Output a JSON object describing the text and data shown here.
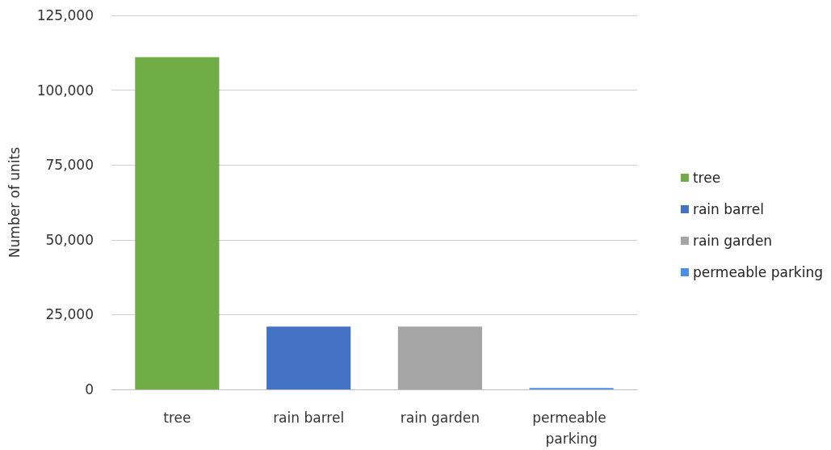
{
  "chart_data": {
    "type": "bar",
    "ylabel": "Number of units",
    "categories": [
      "tree",
      "rain barrel",
      "rain garden",
      "permeable parking"
    ],
    "series": [
      {
        "name": "tree",
        "color": "#70ad47",
        "values": [
          111000,
          null,
          null,
          null
        ]
      },
      {
        "name": "rain barrel",
        "color": "#4472c4",
        "values": [
          null,
          21000,
          null,
          null
        ]
      },
      {
        "name": "rain garden",
        "color": "#a5a5a5",
        "values": [
          null,
          null,
          21000,
          null
        ]
      },
      {
        "name": "permeable parking",
        "color": "#4a8fe7",
        "values": [
          null,
          null,
          null,
          500
        ]
      }
    ],
    "stacked": true,
    "ylim": [
      0,
      125000
    ],
    "yticks": [
      0,
      {
        "value": 25000,
        "label": "25,000"
      },
      {
        "value": 50000,
        "label": "50,000"
      },
      {
        "value": 75000,
        "label": "75,000"
      },
      {
        "value": 100000,
        "label": "100,000"
      },
      {
        "value": 125000,
        "label": "125,000"
      }
    ],
    "grid": "y",
    "legend": "right"
  }
}
